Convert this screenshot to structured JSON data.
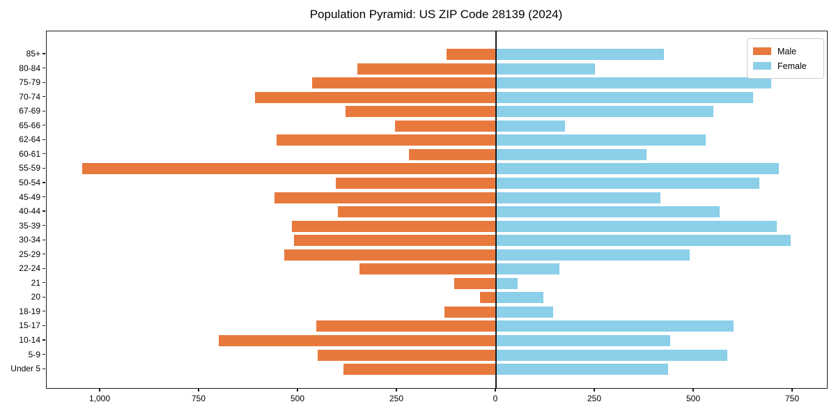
{
  "chart_data": {
    "type": "bar",
    "subtype": "population_pyramid",
    "orientation": "horizontal",
    "title": "Population Pyramid: US ZIP Code 28139 (2024)",
    "categories_top_to_bottom": [
      "85+",
      "80-84",
      "75-79",
      "70-74",
      "67-69",
      "65-66",
      "62-64",
      "60-61",
      "55-59",
      "50-54",
      "45-49",
      "40-44",
      "35-39",
      "30-34",
      "25-29",
      "22-24",
      "21",
      "20",
      "18-19",
      "15-17",
      "10-14",
      "5-9",
      "Under 5"
    ],
    "series": [
      {
        "name": "Male",
        "side": "left",
        "color": "#e8793d",
        "values": [
          125,
          350,
          465,
          610,
          380,
          255,
          555,
          220,
          1045,
          405,
          560,
          400,
          515,
          510,
          535,
          345,
          105,
          40,
          130,
          455,
          700,
          450,
          385
        ]
      },
      {
        "name": "Female",
        "side": "right",
        "color": "#8bcfe9",
        "values": [
          425,
          250,
          695,
          650,
          550,
          175,
          530,
          380,
          715,
          665,
          415,
          565,
          710,
          745,
          490,
          160,
          55,
          120,
          145,
          600,
          440,
          585,
          435
        ]
      }
    ],
    "x_axis": {
      "ticks": [
        {
          "value": -1000,
          "label": "1,000"
        },
        {
          "value": -750,
          "label": "750"
        },
        {
          "value": -500,
          "label": "500"
        },
        {
          "value": -250,
          "label": "250"
        },
        {
          "value": 0,
          "label": "0"
        },
        {
          "value": 250,
          "label": "250"
        },
        {
          "value": 500,
          "label": "500"
        },
        {
          "value": 750,
          "label": "750"
        }
      ],
      "xlim": [
        -1135,
        835
      ]
    },
    "y_axis": {
      "label": ""
    },
    "legend": {
      "position": "upper right",
      "entries": [
        "Male",
        "Female"
      ]
    },
    "grid": false,
    "frame_color": "#1a1a1a",
    "background_color": "#ffffff"
  }
}
